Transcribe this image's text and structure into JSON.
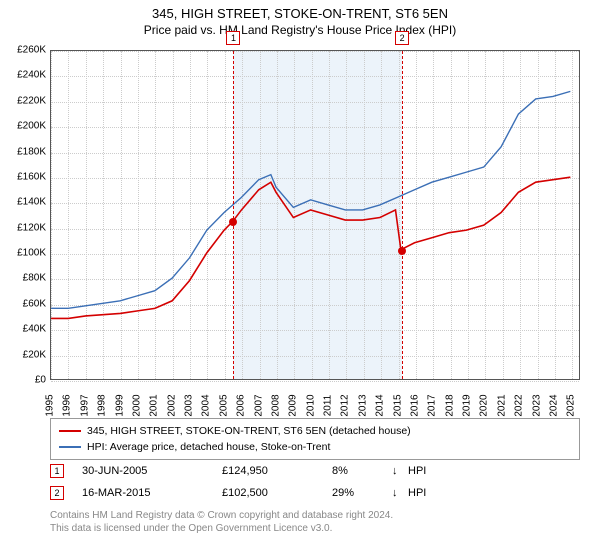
{
  "title": "345, HIGH STREET, STOKE-ON-TRENT, ST6 5EN",
  "subtitle": "Price paid vs. HM Land Registry's House Price Index (HPI)",
  "chart": {
    "type": "line",
    "background_color": "#ffffff",
    "grid_color": "#cccccc",
    "x": {
      "min": 1995,
      "max": 2025.5,
      "ticks": [
        1995,
        1996,
        1997,
        1998,
        1999,
        2000,
        2001,
        2002,
        2003,
        2004,
        2005,
        2006,
        2007,
        2008,
        2009,
        2010,
        2011,
        2012,
        2013,
        2014,
        2015,
        2016,
        2017,
        2018,
        2019,
        2020,
        2021,
        2022,
        2023,
        2024,
        2025
      ],
      "label_fontsize": 10
    },
    "y": {
      "min": 0,
      "max": 260000,
      "ticks": [
        0,
        20000,
        40000,
        60000,
        80000,
        100000,
        120000,
        140000,
        160000,
        180000,
        200000,
        220000,
        240000,
        260000
      ],
      "tick_labels": [
        "£0",
        "£20K",
        "£40K",
        "£60K",
        "£80K",
        "£100K",
        "£120K",
        "£140K",
        "£160K",
        "£180K",
        "£200K",
        "£220K",
        "£240K",
        "£260K"
      ],
      "label_fontsize": 10
    },
    "band": {
      "from": 2005.5,
      "to": 2015.21,
      "color": "rgba(200,220,240,0.35)"
    },
    "series": [
      {
        "name": "red",
        "label": "345, HIGH STREET, STOKE-ON-TRENT, ST6 5EN (detached house)",
        "color": "#d40000",
        "line_width": 1.6,
        "points": [
          [
            1995,
            48000
          ],
          [
            1996,
            48000
          ],
          [
            1997,
            50000
          ],
          [
            1998,
            51000
          ],
          [
            1999,
            52000
          ],
          [
            2000,
            54000
          ],
          [
            2001,
            56000
          ],
          [
            2002,
            62000
          ],
          [
            2003,
            78000
          ],
          [
            2004,
            100000
          ],
          [
            2005,
            118000
          ],
          [
            2005.5,
            124950
          ],
          [
            2006,
            134000
          ],
          [
            2007,
            150000
          ],
          [
            2007.7,
            156000
          ],
          [
            2008,
            148000
          ],
          [
            2009,
            128000
          ],
          [
            2010,
            134000
          ],
          [
            2011,
            130000
          ],
          [
            2012,
            126000
          ],
          [
            2013,
            126000
          ],
          [
            2014,
            128000
          ],
          [
            2014.9,
            134000
          ],
          [
            2015.21,
            102500
          ],
          [
            2016,
            108000
          ],
          [
            2017,
            112000
          ],
          [
            2018,
            116000
          ],
          [
            2019,
            118000
          ],
          [
            2020,
            122000
          ],
          [
            2021,
            132000
          ],
          [
            2022,
            148000
          ],
          [
            2023,
            156000
          ],
          [
            2024,
            158000
          ],
          [
            2025,
            160000
          ]
        ]
      },
      {
        "name": "blue",
        "label": "HPI: Average price, detached house, Stoke-on-Trent",
        "color": "#3b6fb6",
        "line_width": 1.4,
        "points": [
          [
            1995,
            56000
          ],
          [
            1996,
            56000
          ],
          [
            1997,
            58000
          ],
          [
            1998,
            60000
          ],
          [
            1999,
            62000
          ],
          [
            2000,
            66000
          ],
          [
            2001,
            70000
          ],
          [
            2002,
            80000
          ],
          [
            2003,
            96000
          ],
          [
            2004,
            118000
          ],
          [
            2005,
            132000
          ],
          [
            2006,
            144000
          ],
          [
            2007,
            158000
          ],
          [
            2007.7,
            162000
          ],
          [
            2008,
            152000
          ],
          [
            2009,
            136000
          ],
          [
            2010,
            142000
          ],
          [
            2011,
            138000
          ],
          [
            2012,
            134000
          ],
          [
            2013,
            134000
          ],
          [
            2014,
            138000
          ],
          [
            2015,
            144000
          ],
          [
            2016,
            150000
          ],
          [
            2017,
            156000
          ],
          [
            2018,
            160000
          ],
          [
            2019,
            164000
          ],
          [
            2020,
            168000
          ],
          [
            2021,
            184000
          ],
          [
            2022,
            210000
          ],
          [
            2023,
            222000
          ],
          [
            2024,
            224000
          ],
          [
            2025,
            228000
          ]
        ]
      }
    ],
    "markers": [
      {
        "n": "1",
        "x": 2005.5,
        "y": 124950,
        "color": "#d40000"
      },
      {
        "n": "2",
        "x": 2015.21,
        "y": 102500,
        "color": "#d40000"
      }
    ]
  },
  "legend": {
    "rows": [
      {
        "color": "#d40000",
        "text": "345, HIGH STREET, STOKE-ON-TRENT, ST6 5EN (detached house)"
      },
      {
        "color": "#3b6fb6",
        "text": "HPI: Average price, detached house, Stoke-on-Trent"
      }
    ]
  },
  "sales": [
    {
      "n": "1",
      "border": "#d40000",
      "date": "30-JUN-2005",
      "price": "£124,950",
      "pct": "8%",
      "arrow": "↓",
      "hpi": "HPI"
    },
    {
      "n": "2",
      "border": "#d40000",
      "date": "16-MAR-2015",
      "price": "£102,500",
      "pct": "29%",
      "arrow": "↓",
      "hpi": "HPI"
    }
  ],
  "footer": {
    "l1": "Contains HM Land Registry data © Crown copyright and database right 2024.",
    "l2": "This data is licensed under the Open Government Licence v3.0."
  }
}
